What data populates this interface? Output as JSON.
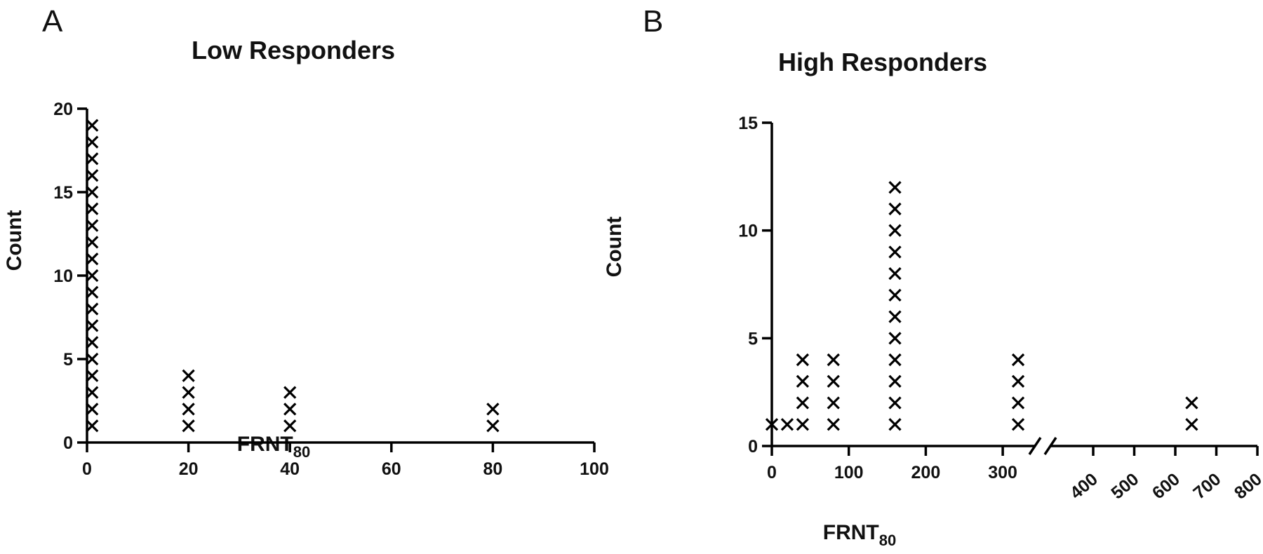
{
  "chart_data": [
    {
      "type": "scatter",
      "panel_label": "A",
      "title": "Low  Responders",
      "xlabel": "FRNT",
      "xlabel_sub": "80",
      "ylabel": "Count",
      "xlim": [
        0,
        100
      ],
      "ylim": [
        0,
        20
      ],
      "x_ticks": [
        0,
        20,
        40,
        60,
        80,
        100
      ],
      "y_ticks": [
        0,
        5,
        10,
        15,
        20
      ],
      "marker": "x",
      "grid": false,
      "stacks": [
        {
          "x": 1,
          "count": 19
        },
        {
          "x": 20,
          "count": 4
        },
        {
          "x": 40,
          "count": 3
        },
        {
          "x": 80,
          "count": 2
        }
      ]
    },
    {
      "type": "scatter",
      "panel_label": "B",
      "title": "High  Responders",
      "xlabel": "FRNT",
      "xlabel_sub": "80",
      "ylabel": "Count",
      "ylim": [
        0,
        15
      ],
      "x_ticks": [
        0,
        100,
        200,
        300
      ],
      "x_ticks_after_break": [
        400,
        500,
        600,
        700,
        800
      ],
      "x_break": [
        330,
        400
      ],
      "y_ticks": [
        0,
        5,
        10,
        15
      ],
      "marker": "x",
      "grid": false,
      "stacks": [
        {
          "x": 0,
          "count": 1
        },
        {
          "x": 20,
          "count": 1
        },
        {
          "x": 40,
          "count": 4
        },
        {
          "x": 80,
          "count": 4
        },
        {
          "x": 160,
          "count": 12
        },
        {
          "x": 320,
          "count": 4
        },
        {
          "x": 640,
          "count": 2
        }
      ]
    }
  ]
}
